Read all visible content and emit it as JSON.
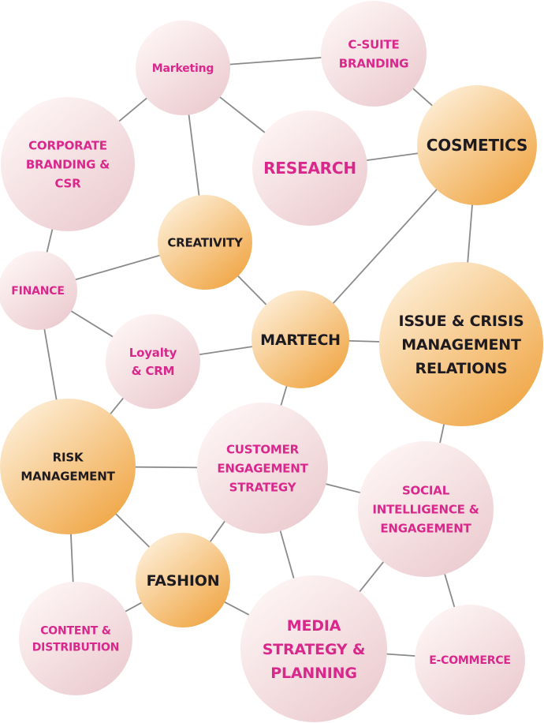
{
  "colors": {
    "pink_text": "#d9288c",
    "dark_text": "#1d1a20",
    "pink_node_light": "#fdf1f1",
    "pink_node_dark": "#eccfd3",
    "orange_node_light": "#fde8c9",
    "orange_node_dark": "#f1a94a",
    "edge": "#8a8a8a"
  },
  "nodes": [
    {
      "id": "marketing",
      "lines": [
        "Marketing"
      ],
      "style": "pink"
    },
    {
      "id": "c-suite-branding",
      "lines": [
        "C-SUITE",
        "BRANDING"
      ],
      "style": "pink"
    },
    {
      "id": "corporate-branding-csr",
      "lines": [
        "CORPORATE",
        "BRANDING &",
        "CSR"
      ],
      "style": "pink"
    },
    {
      "id": "research",
      "lines": [
        "RESEARCH"
      ],
      "style": "pink"
    },
    {
      "id": "cosmetics",
      "lines": [
        "COSMETICS"
      ],
      "style": "orange"
    },
    {
      "id": "creativity",
      "lines": [
        "CREATIVITY"
      ],
      "style": "orange"
    },
    {
      "id": "finance",
      "lines": [
        "FINANCE"
      ],
      "style": "pink"
    },
    {
      "id": "martech",
      "lines": [
        "MARTECH"
      ],
      "style": "orange"
    },
    {
      "id": "issue-crisis",
      "lines": [
        "ISSUE & CRISIS",
        "MANAGEMENT",
        "RELATIONS"
      ],
      "style": "orange"
    },
    {
      "id": "loyalty-crm",
      "lines": [
        "Loyalty",
        "& CRM"
      ],
      "style": "pink"
    },
    {
      "id": "risk-management",
      "lines": [
        "RISK",
        "MANAGEMENT"
      ],
      "style": "orange"
    },
    {
      "id": "customer-engagement",
      "lines": [
        "CUSTOMER",
        "ENGAGEMENT",
        "STRATEGY"
      ],
      "style": "pink"
    },
    {
      "id": "social-intelligence",
      "lines": [
        "SOCIAL",
        "INTELLIGENCE &",
        "ENGAGEMENT"
      ],
      "style": "pink"
    },
    {
      "id": "fashion",
      "lines": [
        "FASHION"
      ],
      "style": "orange"
    },
    {
      "id": "content-distribution",
      "lines": [
        "CONTENT &",
        "DISTRIBUTION"
      ],
      "style": "pink"
    },
    {
      "id": "media-strategy",
      "lines": [
        "MEDIA",
        "STRATEGY &",
        "PLANNING"
      ],
      "style": "pink"
    },
    {
      "id": "e-commerce",
      "lines": [
        "E-COMMERCE"
      ],
      "style": "pink"
    }
  ],
  "edges": [
    [
      "marketing",
      "c-suite-branding"
    ],
    [
      "marketing",
      "corporate-branding-csr"
    ],
    [
      "marketing",
      "research"
    ],
    [
      "marketing",
      "creativity"
    ],
    [
      "c-suite-branding",
      "cosmetics"
    ],
    [
      "research",
      "cosmetics"
    ],
    [
      "cosmetics",
      "martech"
    ],
    [
      "cosmetics",
      "issue-crisis"
    ],
    [
      "corporate-branding-csr",
      "finance"
    ],
    [
      "creativity",
      "finance"
    ],
    [
      "creativity",
      "martech"
    ],
    [
      "finance",
      "loyalty-crm"
    ],
    [
      "finance",
      "risk-management"
    ],
    [
      "loyalty-crm",
      "martech"
    ],
    [
      "loyalty-crm",
      "risk-management"
    ],
    [
      "martech",
      "issue-crisis"
    ],
    [
      "martech",
      "customer-engagement"
    ],
    [
      "issue-crisis",
      "social-intelligence"
    ],
    [
      "risk-management",
      "customer-engagement"
    ],
    [
      "risk-management",
      "fashion"
    ],
    [
      "risk-management",
      "content-distribution"
    ],
    [
      "customer-engagement",
      "social-intelligence"
    ],
    [
      "customer-engagement",
      "fashion"
    ],
    [
      "customer-engagement",
      "media-strategy"
    ],
    [
      "social-intelligence",
      "media-strategy"
    ],
    [
      "social-intelligence",
      "e-commerce"
    ],
    [
      "fashion",
      "content-distribution"
    ],
    [
      "fashion",
      "media-strategy"
    ],
    [
      "media-strategy",
      "e-commerce"
    ]
  ]
}
